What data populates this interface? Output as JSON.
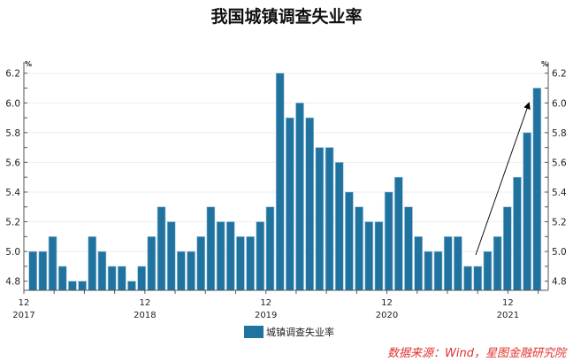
{
  "chart_data": {
    "type": "bar",
    "title": "我国城镇调查失业率",
    "unit_label": "%",
    "values": [
      5.0,
      5.0,
      5.1,
      4.9,
      4.8,
      4.8,
      5.1,
      5.0,
      4.9,
      4.9,
      4.8,
      4.9,
      5.1,
      5.3,
      5.2,
      5.0,
      5.0,
      5.1,
      5.3,
      5.2,
      5.2,
      5.1,
      5.1,
      5.2,
      5.3,
      6.2,
      5.9,
      6.0,
      5.9,
      5.7,
      5.7,
      5.6,
      5.4,
      5.3,
      5.2,
      5.2,
      5.4,
      5.5,
      5.3,
      5.1,
      5.0,
      5.0,
      5.1,
      5.1,
      4.9,
      4.9,
      5.0,
      5.1,
      5.3,
      5.5,
      5.8,
      6.1
    ],
    "x_ticks": [
      {
        "month": "12",
        "year": "2017",
        "index": 0
      },
      {
        "month": "12",
        "year": "2018",
        "index": 12
      },
      {
        "month": "12",
        "year": "2019",
        "index": 24
      },
      {
        "month": "12",
        "year": "2020",
        "index": 36
      },
      {
        "month": "12",
        "year": "2021",
        "index": 48
      }
    ],
    "y_ticks": [
      "4.8",
      "5.0",
      "5.2",
      "5.4",
      "5.6",
      "5.8",
      "6.0",
      "6.2"
    ],
    "ylim": [
      4.74,
      6.25
    ],
    "series_name": "城镇调查失业率",
    "color": "#21739f",
    "grid": true,
    "legend": "bottom-center",
    "annotation": "arrow rising from 2021-09 low to 2022-04 peak"
  },
  "source": "数据来源：Wind，星图金融研究院"
}
